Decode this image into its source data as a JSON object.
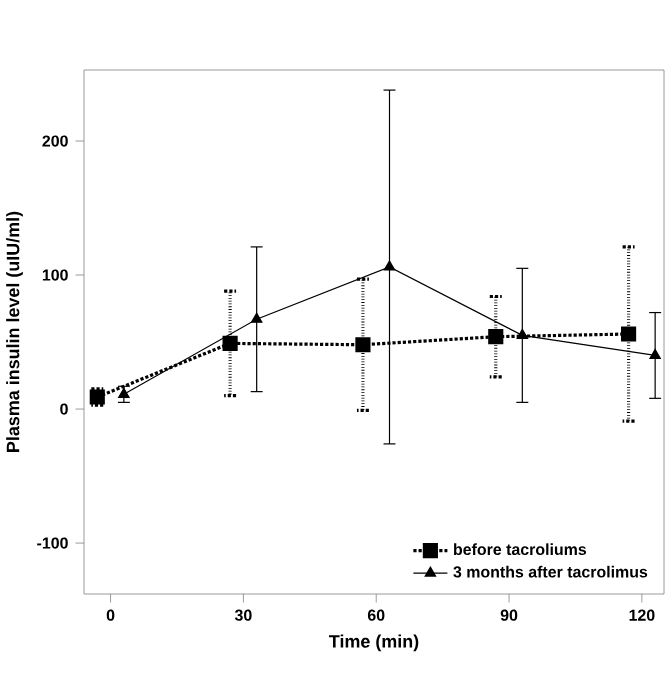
{
  "chart_data": {
    "type": "line",
    "xlabel": "Time (min)",
    "ylabel": "Plasma insulin level (uIU/ml)",
    "xlim": [
      -6,
      125
    ],
    "ylim": [
      -138,
      253
    ],
    "xticks": [
      0,
      30,
      60,
      90,
      120
    ],
    "yticks": [
      -100,
      0,
      100,
      200
    ],
    "grid": false,
    "legend": "bottom right",
    "series": [
      {
        "name": "before tacroliums",
        "color": "#000000",
        "marker": "square",
        "line_style": "dotted",
        "x": [
          -3,
          27,
          57,
          87,
          117
        ],
        "values": [
          9,
          49,
          48,
          54,
          56
        ],
        "errors": [
          6,
          39,
          49,
          30,
          65
        ]
      },
      {
        "name": "3 months after tacrolimus",
        "color": "#000000",
        "marker": "triangle",
        "line_style": "solid",
        "x": [
          3,
          33,
          63,
          93,
          123
        ],
        "values": [
          11,
          67,
          106,
          55,
          40
        ],
        "errors": [
          6,
          54,
          132,
          50,
          32
        ]
      }
    ]
  }
}
